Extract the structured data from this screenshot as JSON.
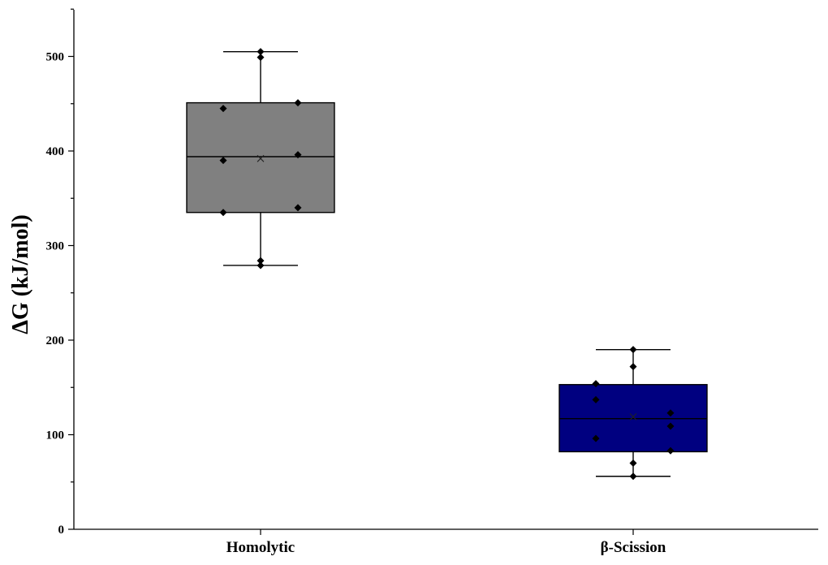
{
  "chart_data": {
    "type": "box",
    "ylabel": "ΔG (kJ/mol)",
    "xlabel": "",
    "ylim": [
      0,
      550
    ],
    "yticks": [
      0,
      100,
      200,
      300,
      400,
      500
    ],
    "grid": false,
    "categories": [
      "Homolytic",
      "β-Scission"
    ],
    "boxes": [
      {
        "category": "Homolytic",
        "color": "#808080",
        "whisker_low": 279,
        "q1": 335,
        "median": 394,
        "mean": 392,
        "q3": 451,
        "whisker_high": 505,
        "points": [
          505,
          499,
          445,
          451,
          390,
          396,
          335,
          340,
          284,
          279
        ]
      },
      {
        "category": "β-Scission",
        "color": "#000080",
        "whisker_low": 56,
        "q1": 82,
        "median": 117,
        "mean": 119,
        "q3": 153,
        "whisker_high": 190,
        "points": [
          190,
          172,
          154,
          123,
          137,
          109,
          96,
          83,
          70,
          56
        ]
      }
    ]
  }
}
